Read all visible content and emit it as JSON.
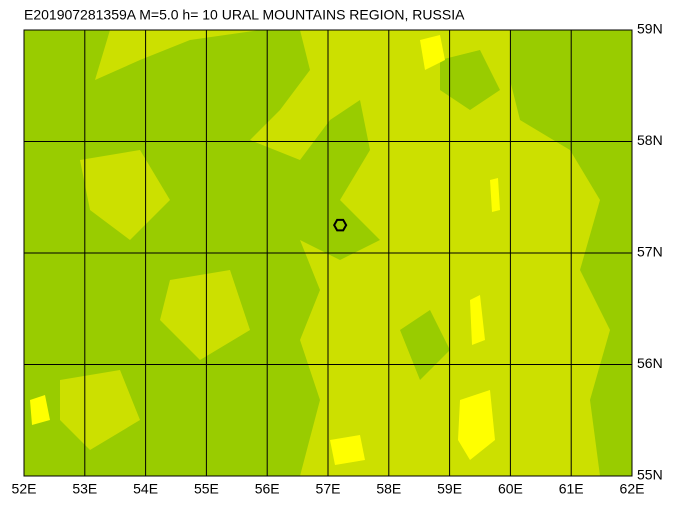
{
  "title": "E201907281359A M=5.0 h= 10 URAL MOUNTAINS REGION, RUSSIA",
  "lonlim": [
    52,
    62
  ],
  "latlim": [
    55,
    59
  ],
  "lonticks": [
    {
      "value": 52,
      "label": "52E"
    },
    {
      "value": 53,
      "label": "53E"
    },
    {
      "value": 54,
      "label": "54E"
    },
    {
      "value": 55,
      "label": "55E"
    },
    {
      "value": 56,
      "label": "56E"
    },
    {
      "value": 57,
      "label": "57E"
    },
    {
      "value": 58,
      "label": "58E"
    },
    {
      "value": 59,
      "label": "59E"
    },
    {
      "value": 60,
      "label": "60E"
    },
    {
      "value": 61,
      "label": "61E"
    },
    {
      "value": 62,
      "label": "62E"
    }
  ],
  "latticks": [
    {
      "value": 55,
      "label": "55N"
    },
    {
      "value": 56,
      "label": "56N"
    },
    {
      "value": 57,
      "label": "57N"
    },
    {
      "value": 58,
      "label": "58N"
    },
    {
      "value": 59,
      "label": "59N"
    }
  ],
  "event": {
    "lon": 57.2,
    "lat": 57.25
  }
}
